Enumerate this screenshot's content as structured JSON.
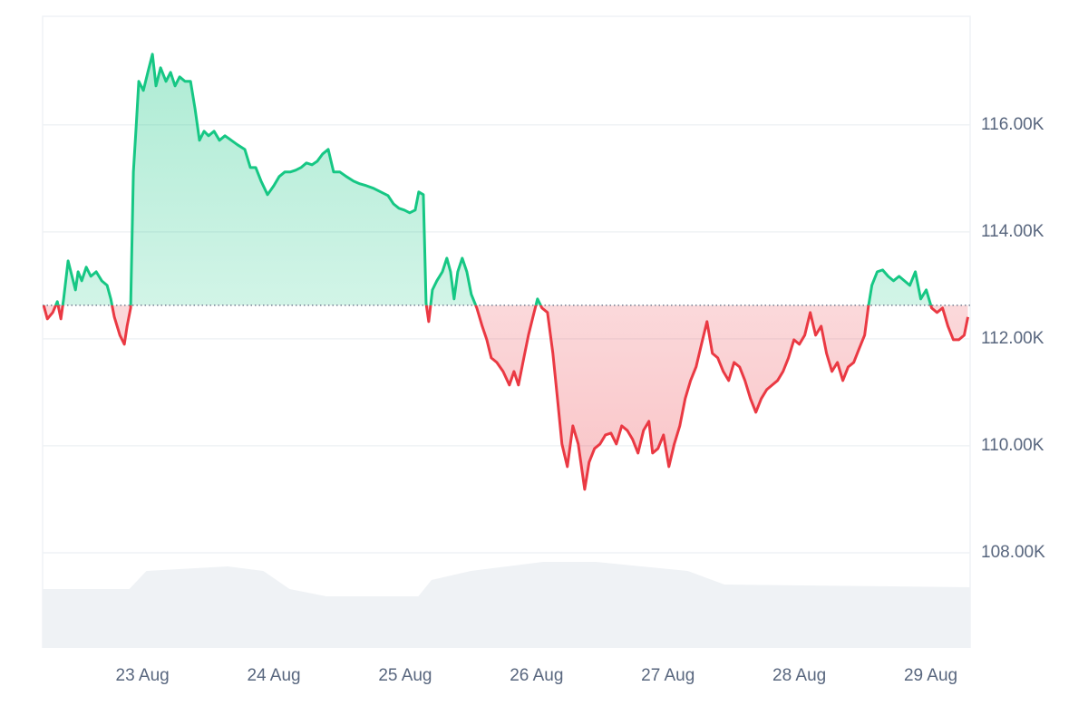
{
  "chart_data": {
    "type": "line",
    "x": [
      22.248,
      22.276,
      22.317,
      22.352,
      22.379,
      22.4,
      22.434,
      22.455,
      22.49,
      22.51,
      22.538,
      22.572,
      22.607,
      22.648,
      22.69,
      22.731,
      22.759,
      22.786,
      22.828,
      22.862,
      22.883,
      22.91,
      22.931,
      22.952,
      22.972,
      23.007,
      23.041,
      23.076,
      23.103,
      23.138,
      23.179,
      23.214,
      23.248,
      23.283,
      23.324,
      23.366,
      23.4,
      23.434,
      23.469,
      23.503,
      23.545,
      23.586,
      23.628,
      23.676,
      23.724,
      23.779,
      23.821,
      23.862,
      23.903,
      23.952,
      24.0,
      24.041,
      24.083,
      24.124,
      24.166,
      24.207,
      24.248,
      24.29,
      24.331,
      24.372,
      24.414,
      24.455,
      24.503,
      24.552,
      24.607,
      24.655,
      24.703,
      24.759,
      24.814,
      24.869,
      24.91,
      24.952,
      24.993,
      25.034,
      25.076,
      25.103,
      25.138,
      25.159,
      25.179,
      25.207,
      25.241,
      25.283,
      25.317,
      25.345,
      25.372,
      25.4,
      25.434,
      25.469,
      25.503,
      25.545,
      25.586,
      25.621,
      25.655,
      25.697,
      25.745,
      25.793,
      25.828,
      25.862,
      25.903,
      25.938,
      25.972,
      26.007,
      26.041,
      26.083,
      26.124,
      26.159,
      26.193,
      26.234,
      26.276,
      26.317,
      26.366,
      26.4,
      26.441,
      26.483,
      26.524,
      26.566,
      26.607,
      26.648,
      26.69,
      26.731,
      26.772,
      26.814,
      26.855,
      26.883,
      26.924,
      26.966,
      27.007,
      27.048,
      27.09,
      27.131,
      27.172,
      27.214,
      27.255,
      27.297,
      27.338,
      27.379,
      27.421,
      27.462,
      27.503,
      27.545,
      27.586,
      27.628,
      27.669,
      27.71,
      27.752,
      27.793,
      27.834,
      27.876,
      27.917,
      27.959,
      28.0,
      28.041,
      28.083,
      28.124,
      28.166,
      28.207,
      28.248,
      28.29,
      28.331,
      28.372,
      28.414,
      28.455,
      28.497,
      28.524,
      28.552,
      28.593,
      28.634,
      28.676,
      28.717,
      28.759,
      28.8,
      28.841,
      28.883,
      28.924,
      28.966,
      29.007,
      29.048,
      29.09,
      29.131,
      29.172,
      29.214,
      29.255,
      29.283
    ],
    "series": [
      {
        "up_color": "#16c784",
        "down_color": "#ea3943",
        "values": [
          112627,
          112373,
          112492,
          112695,
          112373,
          112746,
          113458,
          113254,
          112915,
          113254,
          113085,
          113339,
          113169,
          113254,
          113085,
          113000,
          112746,
          112407,
          112068,
          111898,
          112237,
          112576,
          115119,
          115966,
          116814,
          116644,
          116983,
          117322,
          116729,
          117068,
          116814,
          116983,
          116729,
          116898,
          116814,
          116814,
          116305,
          115712,
          115881,
          115797,
          115881,
          115712,
          115797,
          115712,
          115627,
          115542,
          115203,
          115203,
          114949,
          114695,
          114864,
          115034,
          115119,
          115119,
          115153,
          115203,
          115288,
          115254,
          115322,
          115458,
          115542,
          115119,
          115119,
          115034,
          114949,
          114898,
          114864,
          114814,
          114746,
          114678,
          114525,
          114441,
          114407,
          114356,
          114407,
          114746,
          114695,
          112661,
          112322,
          112915,
          113085,
          113254,
          113508,
          113254,
          112746,
          113254,
          113508,
          113254,
          112831,
          112576,
          112237,
          111983,
          111644,
          111559,
          111390,
          111136,
          111390,
          111136,
          111644,
          112068,
          112407,
          112746,
          112576,
          112492,
          111729,
          110881,
          110034,
          109610,
          110373,
          110034,
          109186,
          109695,
          109949,
          110034,
          110203,
          110237,
          110034,
          110373,
          110288,
          110119,
          109864,
          110288,
          110458,
          109864,
          109949,
          110203,
          109610,
          110034,
          110373,
          110881,
          111220,
          111475,
          111898,
          112322,
          111729,
          111644,
          111390,
          111220,
          111559,
          111475,
          111220,
          110881,
          110627,
          110881,
          111051,
          111136,
          111220,
          111390,
          111644,
          111983,
          111898,
          112068,
          112492,
          112068,
          112237,
          111729,
          111390,
          111559,
          111220,
          111475,
          111559,
          111814,
          112068,
          112576,
          113000,
          113254,
          113288,
          113169,
          113085,
          113169,
          113085,
          113000,
          113254,
          112746,
          112915,
          112576,
          112492,
          112576,
          112237,
          111983,
          111983,
          112068,
          112407
        ]
      }
    ],
    "volume": {
      "color": "#eff2f5",
      "x": [
        22.24,
        22.9,
        23.03,
        23.65,
        23.92,
        24.12,
        24.4,
        25.1,
        25.2,
        25.5,
        26.05,
        26.45,
        27.15,
        27.43,
        29.3
      ],
      "values": [
        65,
        65,
        85,
        90,
        85,
        65,
        57,
        57,
        75,
        85,
        95,
        95,
        85,
        70,
        67
      ],
      "vlim": [
        0,
        100
      ]
    },
    "xlim": [
      22.24,
      29.3
    ],
    "xticks": [
      {
        "value": 23,
        "label": "23 Aug"
      },
      {
        "value": 24,
        "label": "24 Aug"
      },
      {
        "value": 25,
        "label": "25 Aug"
      },
      {
        "value": 26,
        "label": "26 Aug"
      },
      {
        "value": 27,
        "label": "27 Aug"
      },
      {
        "value": 28,
        "label": "28 Aug"
      },
      {
        "value": 29,
        "label": "29 Aug"
      }
    ],
    "ylim": [
      106220,
      118030
    ],
    "yticks": [
      {
        "value": 108000,
        "label": "108.00K"
      },
      {
        "value": 110000,
        "label": "110.00K"
      },
      {
        "value": 112000,
        "label": "112.00K"
      },
      {
        "value": 114000,
        "label": "114.00K"
      },
      {
        "value": 116000,
        "label": "116.00K"
      }
    ],
    "grid": true
  }
}
